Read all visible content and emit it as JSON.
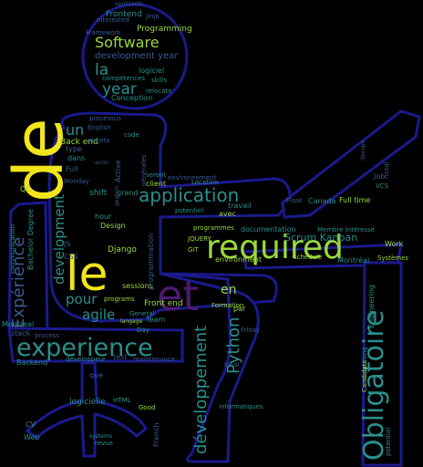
{
  "colors": {
    "background": "#000000",
    "outline": "#1a1a8c",
    "yellow": "#f2e51b",
    "green": "#9bd93c",
    "teal": "#2a8f8c",
    "blue": "#3b5a8f",
    "purple": "#4b1a6e",
    "dark_purple": "#3a1460"
  },
  "words": [
    {
      "text": "de",
      "color": "#f2e51b"
    },
    {
      "text": "le",
      "color": "#f2e51b"
    },
    {
      "text": "required",
      "color": "#9bd93c"
    },
    {
      "text": "et",
      "color": "#4b1a6e"
    },
    {
      "text": "Obligatoire",
      "color": "#2a8f8c"
    },
    {
      "text": "experience",
      "color": "#2a8f8c"
    },
    {
      "text": "application",
      "color": "#2a8f8c"
    },
    {
      "text": "Software",
      "color": "#9bd93c"
    },
    {
      "text": "développement",
      "color": "#2a8f8c"
    },
    {
      "text": "Python",
      "color": "#2a8f8c"
    },
    {
      "text": "Expérience",
      "color": "#3b5a8f"
    },
    {
      "text": "development",
      "color": "#2a8f8c"
    },
    {
      "text": "year",
      "color": "#2a8f8c"
    },
    {
      "text": "la",
      "color": "#2a8f8c"
    },
    {
      "text": "un",
      "color": "#2a8f8c"
    },
    {
      "text": "pour",
      "color": "#2a8f8c"
    },
    {
      "text": "agile",
      "color": "#2a8f8c"
    },
    {
      "text": "en",
      "color": "#9bd93c"
    },
    {
      "text": "Scrum Kanban",
      "color": "#2a8f8c"
    },
    {
      "text": "development year",
      "color": "#3b5a8f"
    },
    {
      "text": "Programming",
      "color": "#9bd93c"
    },
    {
      "text": "Frontend",
      "color": "#2a8f8c"
    },
    {
      "text": "Framework",
      "color": "#3b5a8f"
    },
    {
      "text": "interested",
      "color": "#3b5a8f"
    },
    {
      "text": "logiciel",
      "color": "#2a8f8c"
    },
    {
      "text": "compétences",
      "color": "#2a8f8c"
    },
    {
      "text": "skills",
      "color": "#2a8f8c"
    },
    {
      "text": "Conception",
      "color": "#2a8f8c"
    },
    {
      "text": "relocate",
      "color": "#2a8f8c"
    },
    {
      "text": "Back end",
      "color": "#9bd93c"
    },
    {
      "text": "dans",
      "color": "#2a8f8c"
    },
    {
      "text": "type",
      "color": "#3b5a8f"
    },
    {
      "text": "Full",
      "color": "#3b5a8f"
    },
    {
      "text": "projets",
      "color": "#3b5a8f"
    },
    {
      "text": "processus",
      "color": "#3b5a8f"
    },
    {
      "text": "English",
      "color": "#3b5a8f"
    },
    {
      "text": "code",
      "color": "#2a8f8c"
    },
    {
      "text": "Active",
      "color": "#3b5a8f"
    },
    {
      "text": "client",
      "color": "#9bd93c"
    },
    {
      "text": "environnement",
      "color": "#3b5a8f"
    },
    {
      "text": "Location",
      "color": "#2a8f8c"
    },
    {
      "text": "travail",
      "color": "#2a8f8c"
    },
    {
      "text": "potentiel",
      "color": "#2a8f8c"
    },
    {
      "text": "avec",
      "color": "#9bd93c"
    },
    {
      "text": "shift",
      "color": "#2a8f8c"
    },
    {
      "text": "grand",
      "color": "#2a8f8c"
    },
    {
      "text": "Monday",
      "color": "#3b5a8f"
    },
    {
      "text": "hour",
      "color": "#2a8f8c"
    },
    {
      "text": "Design",
      "color": "#9bd93c"
    },
    {
      "text": "Django",
      "color": "#9bd93c"
    },
    {
      "text": "CSS",
      "color": "#3b5a8f"
    },
    {
      "text": "JS",
      "color": "#3b5a8f"
    },
    {
      "text": "programmes",
      "color": "#9bd93c"
    },
    {
      "text": "JQUERY",
      "color": "#9bd93c"
    },
    {
      "text": "GIT",
      "color": "#9bd93c"
    },
    {
      "text": "documentation",
      "color": "#2a8f8c"
    },
    {
      "text": "environment",
      "color": "#9bd93c"
    },
    {
      "text": "Membre intéressé",
      "color": "#2a8f8c"
    },
    {
      "text": "Canada",
      "color": "#2a8f8c"
    },
    {
      "text": "Full time",
      "color": "#9bd93c"
    },
    {
      "text": "Work",
      "color": "#9bd93c"
    },
    {
      "text": "Systèmes",
      "color": "#9bd93c"
    },
    {
      "text": "Montréal",
      "color": "#2a8f8c"
    },
    {
      "text": "Job",
      "color": "#3b5a8f"
    },
    {
      "text": "Flask",
      "color": "#3b5a8f"
    },
    {
      "text": "VCS",
      "color": "#2a8f8c"
    },
    {
      "text": "Front end",
      "color": "#9bd93c"
    },
    {
      "text": "sessions",
      "color": "#9bd93c"
    },
    {
      "text": "programs",
      "color": "#9bd93c"
    },
    {
      "text": "Formation",
      "color": "#9bd93c"
    },
    {
      "text": "Team",
      "color": "#2a8f8c"
    },
    {
      "text": "Friday",
      "color": "#3b5a8f"
    },
    {
      "text": "local",
      "color": "#3b5a8f"
    },
    {
      "text": "General",
      "color": "#2a8f8c"
    },
    {
      "text": "par",
      "color": "#9bd93c"
    },
    {
      "text": "langage",
      "color": "#9bd93c"
    },
    {
      "text": "Bachelor Degree",
      "color": "#2a8f8c"
    },
    {
      "text": "communication",
      "color": "#2a8f8c"
    },
    {
      "text": "QC",
      "color": "#9bd93c"
    },
    {
      "text": "Montreal",
      "color": "#2a8f8c"
    },
    {
      "text": "stack",
      "color": "#3b5a8f"
    },
    {
      "text": "process",
      "color": "#3b5a8f"
    },
    {
      "text": "Backend",
      "color": "#2a8f8c"
    },
    {
      "text": "développeur",
      "color": "#2a8f8c"
    },
    {
      "text": "Engineering",
      "color": "#2a8f8c"
    },
    {
      "text": "supporting",
      "color": "#2a8f8c"
    },
    {
      "text": "Candidats",
      "color": "#9bd93c"
    },
    {
      "text": "potential",
      "color": "#2a8f8c"
    },
    {
      "text": "logicielle",
      "color": "#2a8f8c"
    },
    {
      "text": "HTML",
      "color": "#2a8f8c"
    },
    {
      "text": "que",
      "color": "#3b5a8f"
    },
    {
      "text": "Good",
      "color": "#9bd93c"
    },
    {
      "text": "French",
      "color": "#3b5a8f"
    },
    {
      "text": "systems",
      "color": "#2a8f8c"
    },
    {
      "text": "revue",
      "color": "#2a8f8c"
    },
    {
      "text": "informatiques",
      "color": "#2a8f8c"
    },
    {
      "text": "CV",
      "color": "#2a8f8c"
    },
    {
      "text": "Web",
      "color": "#2a8f8c"
    },
    {
      "text": "test",
      "color": "#3b5a8f"
    },
    {
      "text": "maintenance",
      "color": "#3b5a8f"
    },
    {
      "text": "applicants",
      "color": "#3b5a8f"
    },
    {
      "text": "Jinja",
      "color": "#3b5a8f"
    },
    {
      "text": "générales",
      "color": "#3b5a8f"
    },
    {
      "text": "seront",
      "color": "#2a8f8c"
    },
    {
      "text": "gestion",
      "color": "#3b5a8f"
    },
    {
      "text": "programmation",
      "color": "#3b5a8f"
    },
    {
      "text": "nosql",
      "color": "#3b5a8f"
    },
    {
      "text": "devops",
      "color": "#3b5a8f"
    },
    {
      "text": "Day",
      "color": "#2a8f8c"
    },
    {
      "text": "avoir",
      "color": "#3b5a8f"
    },
    {
      "text": "schedule",
      "color": "#9bd93c"
    }
  ]
}
